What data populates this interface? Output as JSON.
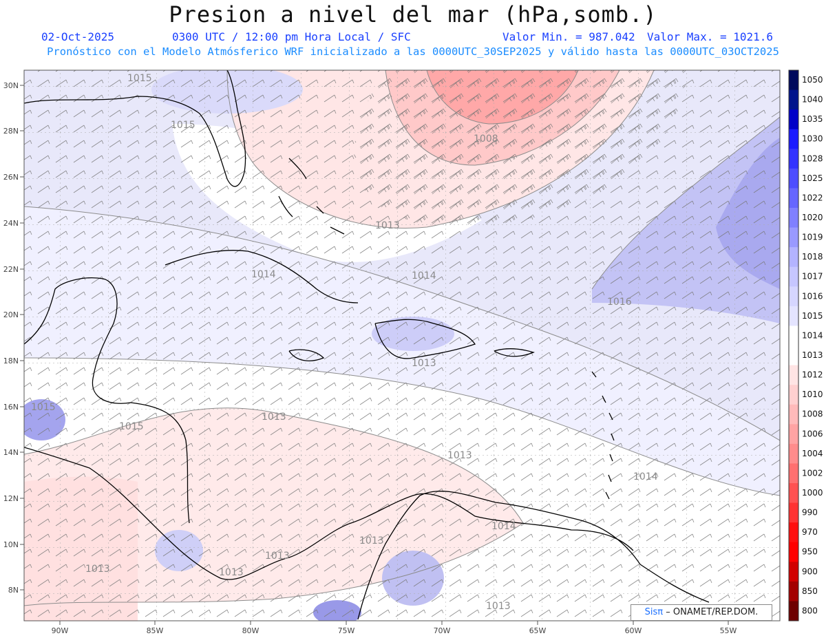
{
  "header": {
    "title": "Presion a nivel del mar (hPa,somb.)",
    "date": "02-Oct-2025",
    "time": "0300 UTC / 12:00 pm Hora Local / SFC",
    "min": "Valor Min. = 987.042",
    "max": "Valor Max. = 1021.6",
    "forecast": "Pronóstico con el Modelo Atmósferico WRF inicializado a las 0000UTC_30SEP2025 y válido hasta las  0000UTC_03OCT2025"
  },
  "axes": {
    "lon_labels": [
      "90W",
      "85W",
      "80W",
      "75W",
      "70W",
      "65W",
      "60W",
      "55W"
    ],
    "lat_labels": [
      "30N",
      "28N",
      "26N",
      "24N",
      "22N",
      "20N",
      "18N",
      "16N",
      "14N",
      "12N",
      "10N",
      "8N"
    ]
  },
  "colorbar": {
    "levels": [
      "1050",
      "1040",
      "1035",
      "1030",
      "1028",
      "1025",
      "1022",
      "1020",
      "1019",
      "1018",
      "1017",
      "1016",
      "1015",
      "1014",
      "1013",
      "1012",
      "1010",
      "1008",
      "1006",
      "1004",
      "1002",
      "1000",
      "990",
      "970",
      "950",
      "900",
      "850",
      "800"
    ],
    "colors": [
      "#000a5c",
      "#00148c",
      "#0000c8",
      "#1a1aff",
      "#3333ff",
      "#4d4dff",
      "#6666ff",
      "#8080ff",
      "#9999ff",
      "#b3b3ff",
      "#c6c6ff",
      "#d6d6ff",
      "#e4e4ff",
      "#ffffff",
      "#ffffff",
      "#ffe4e4",
      "#ffd0d0",
      "#ffbaba",
      "#ffa3a3",
      "#ff8c8c",
      "#ff7070",
      "#ff5252",
      "#ff3333",
      "#ff0f0f",
      "#ff0000",
      "#d10000",
      "#a30000",
      "#6e0000"
    ]
  },
  "isobars": [
    "1015",
    "1015",
    "1008",
    "1013",
    "1014",
    "1014",
    "1016",
    "1013",
    "1015",
    "1015",
    "1013",
    "1014",
    "1013",
    "1014",
    "1013",
    "1013",
    "1013",
    "1013",
    "1013"
  ],
  "credit": {
    "logo": "Sisπ",
    "text": "– ONAMET/REP.DOM."
  }
}
